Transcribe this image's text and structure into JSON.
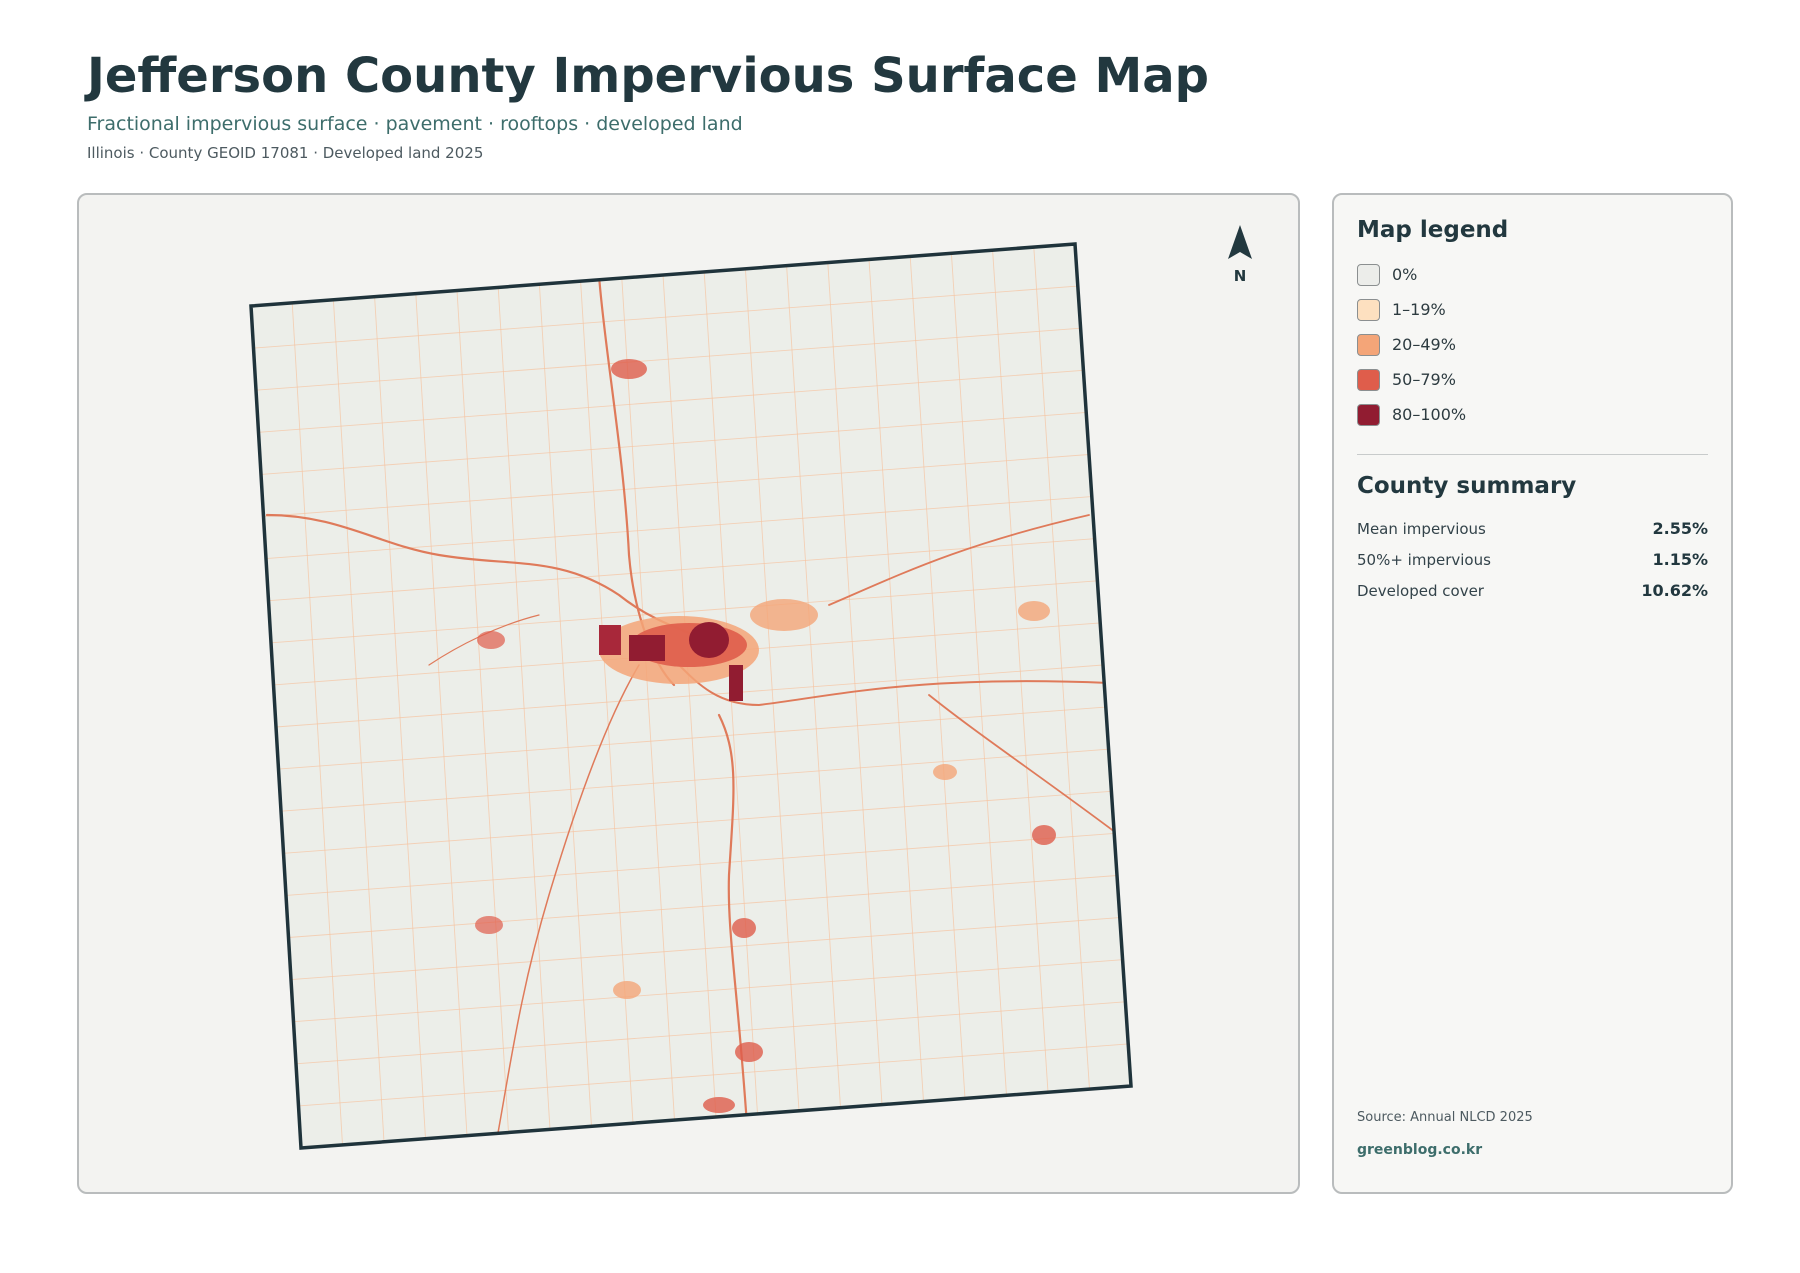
{
  "header": {
    "title": "Jefferson County Impervious Surface Map",
    "subtitle": "Fractional impervious surface · pavement · rooftops · developed land",
    "meta": "Illinois · County GEOID 17081 · Developed land 2025"
  },
  "map": {
    "north_label": "N",
    "boundary_color": "#1f333b",
    "land_color": "#eceee9"
  },
  "legend": {
    "title": "Map legend",
    "items": [
      {
        "label": "0%",
        "color": "#ecedea"
      },
      {
        "label": "1–19%",
        "color": "#fde0c0"
      },
      {
        "label": "20–49%",
        "color": "#f4a578"
      },
      {
        "label": "50–79%",
        "color": "#df5d4b"
      },
      {
        "label": "80–100%",
        "color": "#911c31"
      }
    ]
  },
  "summary": {
    "title": "County summary",
    "stats": [
      {
        "label": "Mean impervious",
        "value": "2.55%"
      },
      {
        "label": "50%+ impervious",
        "value": "1.15%"
      },
      {
        "label": "Developed cover",
        "value": "10.62%"
      }
    ]
  },
  "footer": {
    "source": "Source: Annual NLCD 2025",
    "credit": "greenblog.co.kr"
  }
}
